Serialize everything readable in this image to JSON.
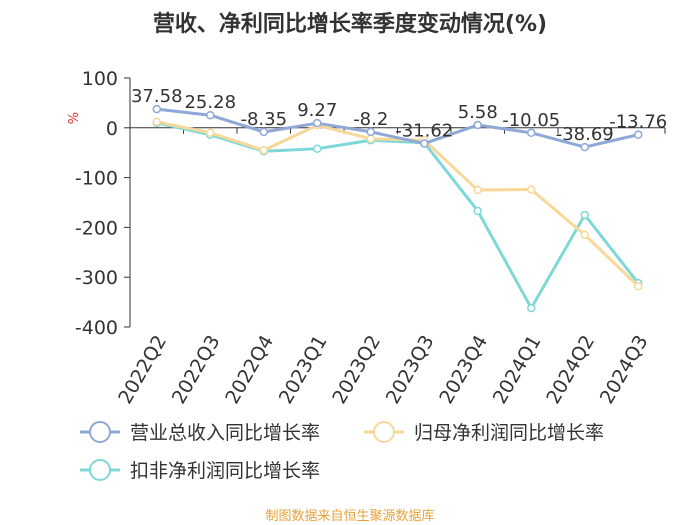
{
  "title": "营收、净利同比增长率季度变动情况(%)",
  "footer": "制图数据来自恒生聚源数据库",
  "colors": {
    "revenue": "#8fa8d8",
    "parent_net": "#f7d89a",
    "deducted_net": "#7fd8d8",
    "axis": "#333333",
    "unit": "#e03030"
  },
  "chart_data": {
    "type": "line",
    "unit_label": "%",
    "categories": [
      "2022Q2",
      "2022Q3",
      "2022Q4",
      "2023Q1",
      "2023Q2",
      "2023Q3",
      "2023Q4",
      "2024Q1",
      "2024Q2",
      "2024Q3"
    ],
    "ylim": [
      -400,
      100
    ],
    "yticks": [
      100,
      0,
      -100,
      -200,
      -300,
      -400
    ],
    "grid": false,
    "legend_position": "bottom",
    "series": [
      {
        "name": "营业总收入同比增长率",
        "key": "revenue",
        "values": [
          37.58,
          25.28,
          -8.35,
          9.27,
          -8.2,
          -31.62,
          5.58,
          -10.05,
          -38.69,
          -13.76
        ],
        "labels": [
          "37.58",
          "25.28",
          "-8.35",
          "9.27",
          "-8.2",
          "-31.62",
          "5.58",
          "-10.05",
          "-38.69",
          "-13.76"
        ]
      },
      {
        "name": "归母净利润同比增长率",
        "key": "parent_net",
        "values": [
          12,
          -10,
          -45,
          5,
          -22,
          -25,
          -125,
          -124,
          -215,
          -318
        ]
      },
      {
        "name": "扣非净利润同比增长率",
        "key": "deducted_net",
        "values": [
          10,
          -14,
          -47,
          -42,
          -25,
          -30,
          -167,
          -362,
          -175,
          -312
        ]
      }
    ]
  }
}
